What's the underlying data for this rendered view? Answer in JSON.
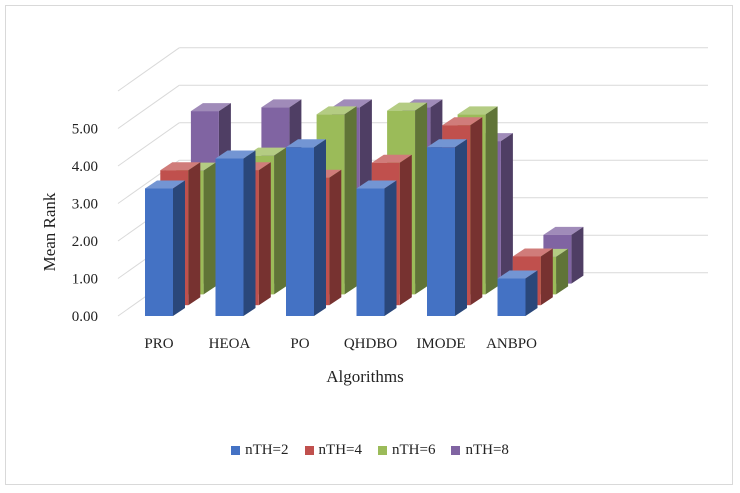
{
  "chart_data": {
    "type": "bar",
    "subtype": "3d-clustered-column",
    "title": "",
    "xlabel": "Algorithms",
    "ylabel": "Mean Rank",
    "ylim": [
      0,
      5
    ],
    "yticks": [
      "0.00",
      "1.00",
      "2.00",
      "3.00",
      "4.00",
      "5.00"
    ],
    "grid": true,
    "legend_position": "bottom",
    "categories": [
      "PRO",
      "HEOA",
      "PO",
      "QHDBO",
      "IMODE",
      "ANBPO"
    ],
    "series": [
      {
        "name": "nTH=2",
        "color": "#4472C4",
        "values": [
          3.4,
          4.2,
          4.5,
          3.4,
          4.5,
          1.0
        ]
      },
      {
        "name": "nTH=4",
        "color": "#C0504D",
        "values": [
          3.6,
          3.6,
          3.4,
          3.8,
          4.8,
          1.3
        ]
      },
      {
        "name": "nTH=6",
        "color": "#9BBB59",
        "values": [
          3.3,
          3.7,
          4.8,
          4.9,
          4.8,
          1.0
        ]
      },
      {
        "name": "nTH=8",
        "color": "#8064A2",
        "values": [
          4.6,
          4.7,
          4.7,
          4.7,
          3.8,
          1.3
        ]
      }
    ]
  }
}
